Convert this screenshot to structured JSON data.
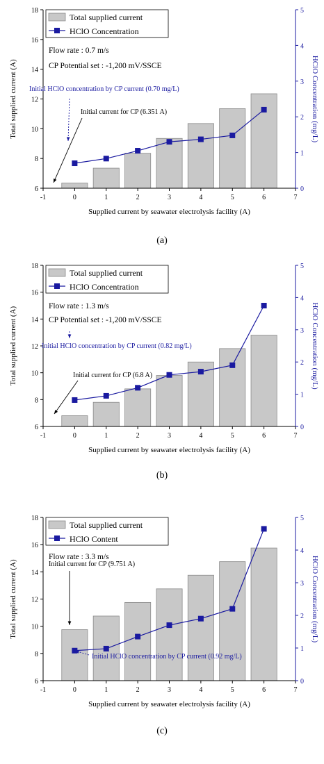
{
  "chart_data": [
    {
      "type": "bar",
      "panel_label": "(a)",
      "categories": [
        0,
        1,
        2,
        3,
        4,
        5,
        6
      ],
      "series": [
        {
          "name": "Total supplied current",
          "type": "bar",
          "axis": "left",
          "values": [
            6.35,
            7.35,
            8.35,
            9.35,
            10.35,
            11.35,
            12.35
          ]
        },
        {
          "name": "HClO Concentration",
          "type": "line",
          "axis": "right",
          "values": [
            0.7,
            0.83,
            1.05,
            1.3,
            1.37,
            1.48,
            2.2
          ]
        }
      ],
      "xlabel": "Supplied current by seawater electrolysis facility (A)",
      "ylabel": "Total supplied current (A)",
      "y2label": "HClO Concentration (mg/L)",
      "xlim": [
        -1,
        7
      ],
      "xticks": [
        "-1",
        "0",
        "1",
        "2",
        "3",
        "4",
        "5",
        "6",
        "7"
      ],
      "ylim": [
        6,
        18
      ],
      "yticks": [
        "6",
        "8",
        "10",
        "12",
        "14",
        "16",
        "18"
      ],
      "y2lim": [
        0,
        5
      ],
      "y2ticks": [
        "0",
        "1",
        "2",
        "3",
        "4",
        "5"
      ],
      "info_lines": [
        "Flow rate : 0.7 m/s",
        "CP Potential set : -1,200 mV/SSCE"
      ],
      "annotations": [
        {
          "text": "Initial HClO concentration by CP current (0.70 mg/L)",
          "color": "#1a1aa0"
        },
        {
          "text": "Initial current for CP (6.351 A)",
          "color": "#000000"
        }
      ]
    },
    {
      "type": "bar",
      "panel_label": "(b)",
      "categories": [
        0,
        1,
        2,
        3,
        4,
        5,
        6
      ],
      "series": [
        {
          "name": "Total supplied current",
          "type": "bar",
          "axis": "left",
          "values": [
            6.8,
            7.8,
            8.8,
            9.8,
            10.8,
            11.8,
            12.8
          ]
        },
        {
          "name": "HClO Concentration",
          "type": "line",
          "axis": "right",
          "values": [
            0.82,
            0.95,
            1.2,
            1.6,
            1.7,
            1.9,
            3.75
          ]
        }
      ],
      "xlabel": "Supplied current by seawater electrolysis facility (A)",
      "ylabel": "Total supplied current (A)",
      "y2label": "HClO Concentration (mg/L)",
      "xlim": [
        -1,
        7
      ],
      "xticks": [
        "-1",
        "0",
        "1",
        "2",
        "3",
        "4",
        "5",
        "6",
        "7"
      ],
      "ylim": [
        6,
        18
      ],
      "yticks": [
        "6",
        "8",
        "10",
        "12",
        "14",
        "16",
        "18"
      ],
      "y2lim": [
        0,
        5
      ],
      "y2ticks": [
        "0",
        "1",
        "2",
        "3",
        "4",
        "5"
      ],
      "info_lines": [
        "Flow rate : 1.3 m/s",
        "CP Potential set : -1,200 mV/SSCE"
      ],
      "annotations": [
        {
          "text": "Initial HClO concentration by CP current (0.82 mg/L)",
          "color": "#1a1aa0"
        },
        {
          "text": "Initial current for CP (6.8 A)",
          "color": "#000000"
        }
      ]
    },
    {
      "type": "bar",
      "panel_label": "(c)",
      "categories": [
        0,
        1,
        2,
        3,
        4,
        5,
        6
      ],
      "series": [
        {
          "name": "Total supplied current",
          "type": "bar",
          "axis": "left",
          "values": [
            9.75,
            10.75,
            11.75,
            12.75,
            13.75,
            14.75,
            15.75
          ]
        },
        {
          "name": "HClO Content",
          "type": "line",
          "axis": "right",
          "values": [
            0.92,
            0.98,
            1.35,
            1.7,
            1.9,
            2.2,
            4.65
          ]
        }
      ],
      "xlabel": "Supplied current by seawater electrolysis facility (A)",
      "ylabel": "Total supplied current (A)",
      "y2label": "HClO Concentration (mg/L)",
      "xlim": [
        -1,
        7
      ],
      "xticks": [
        "-1",
        "0",
        "1",
        "2",
        "3",
        "4",
        "5",
        "6",
        "7"
      ],
      "ylim": [
        6,
        18
      ],
      "yticks": [
        "6",
        "8",
        "10",
        "12",
        "14",
        "16",
        "18"
      ],
      "y2lim": [
        0,
        5
      ],
      "y2ticks": [
        "0",
        "1",
        "2",
        "3",
        "4",
        "5"
      ],
      "info_lines": [
        "Flow rate : 3.3 m/s"
      ],
      "annotations": [
        {
          "text": "Initial current for CP (9.751 A)",
          "color": "#000000"
        },
        {
          "text": "Initial HClO concentration by CP current (0.92 mg/L)",
          "color": "#1a1aa0"
        }
      ]
    }
  ]
}
